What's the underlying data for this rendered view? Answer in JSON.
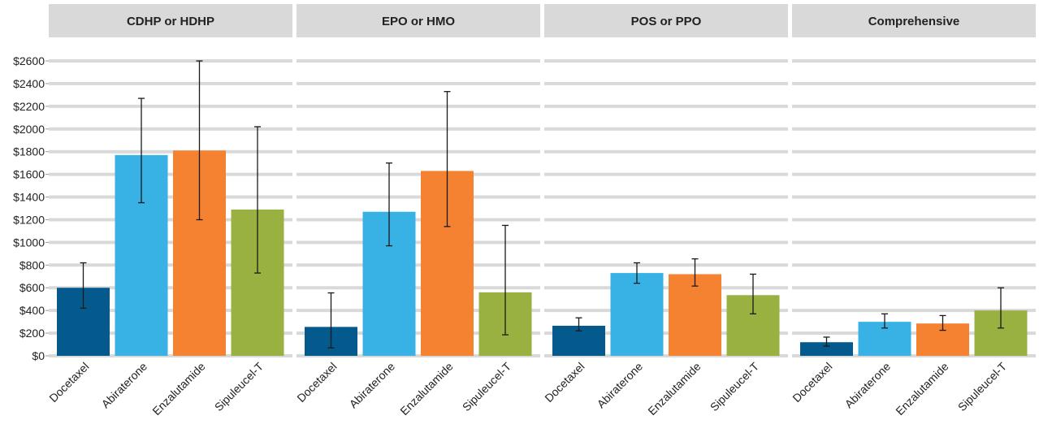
{
  "chart_data": {
    "type": "bar",
    "categories": [
      "Docetaxel",
      "Abiraterone",
      "Enzalutamide",
      "Sipuleucel-T"
    ],
    "colors": [
      "#045a8d",
      "#38b1e5",
      "#f58231",
      "#98b140"
    ],
    "ylim": [
      0,
      2600
    ],
    "yticks": [
      0,
      200,
      400,
      600,
      800,
      1000,
      1200,
      1400,
      1600,
      1800,
      2000,
      2200,
      2400,
      2600
    ],
    "ytick_labels": [
      "$0",
      "$200",
      "$400",
      "$600",
      "$800",
      "$1000",
      "$1200",
      "$1400",
      "$1600",
      "$1800",
      "$2000",
      "$2200",
      "$2400",
      "$2600"
    ],
    "grid": true,
    "legend": "none",
    "panels": [
      {
        "title": "CDHP or HDHP",
        "values": [
          600,
          1770,
          1810,
          1290
        ],
        "err_low": [
          420,
          1350,
          1200,
          730
        ],
        "err_high": [
          820,
          2270,
          2600,
          2020
        ]
      },
      {
        "title": "EPO or HMO",
        "values": [
          255,
          1270,
          1630,
          560
        ],
        "err_low": [
          70,
          970,
          1140,
          185
        ],
        "err_high": [
          555,
          1700,
          2330,
          1150
        ]
      },
      {
        "title": "POS or PPO",
        "values": [
          265,
          730,
          720,
          535
        ],
        "err_low": [
          220,
          640,
          615,
          370
        ],
        "err_high": [
          335,
          820,
          855,
          720
        ]
      },
      {
        "title": "Comprehensive",
        "values": [
          120,
          300,
          285,
          400
        ],
        "err_low": [
          85,
          245,
          225,
          245
        ],
        "err_high": [
          165,
          370,
          355,
          600
        ]
      }
    ]
  }
}
